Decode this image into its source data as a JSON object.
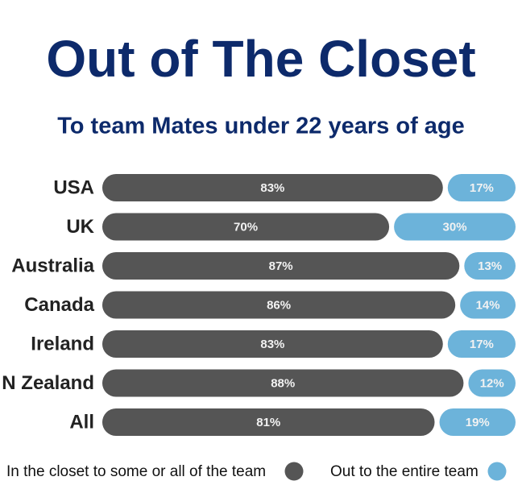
{
  "chart_data": {
    "type": "stacked-bar",
    "title": "Out of The Closet",
    "subtitle": "To team Mates under 22 years of age",
    "categories": [
      "USA",
      "UK",
      "Australia",
      "Canada",
      "Ireland",
      "N Zealand",
      "All"
    ],
    "series": [
      {
        "name": "In the closet to some or all of the team",
        "color": "#555555",
        "values": [
          83,
          70,
          87,
          86,
          83,
          88,
          81
        ],
        "value_labels": [
          "83%",
          "70%",
          "87%",
          "86%",
          "83%",
          "88%",
          "81%"
        ]
      },
      {
        "name": "Out to the entire team",
        "color": "#6cb3da",
        "values": [
          17,
          30,
          13,
          14,
          17,
          12,
          19
        ],
        "value_labels": [
          "17%",
          "30%",
          "13%",
          "14%",
          "17%",
          "12%",
          "19%"
        ]
      }
    ]
  }
}
